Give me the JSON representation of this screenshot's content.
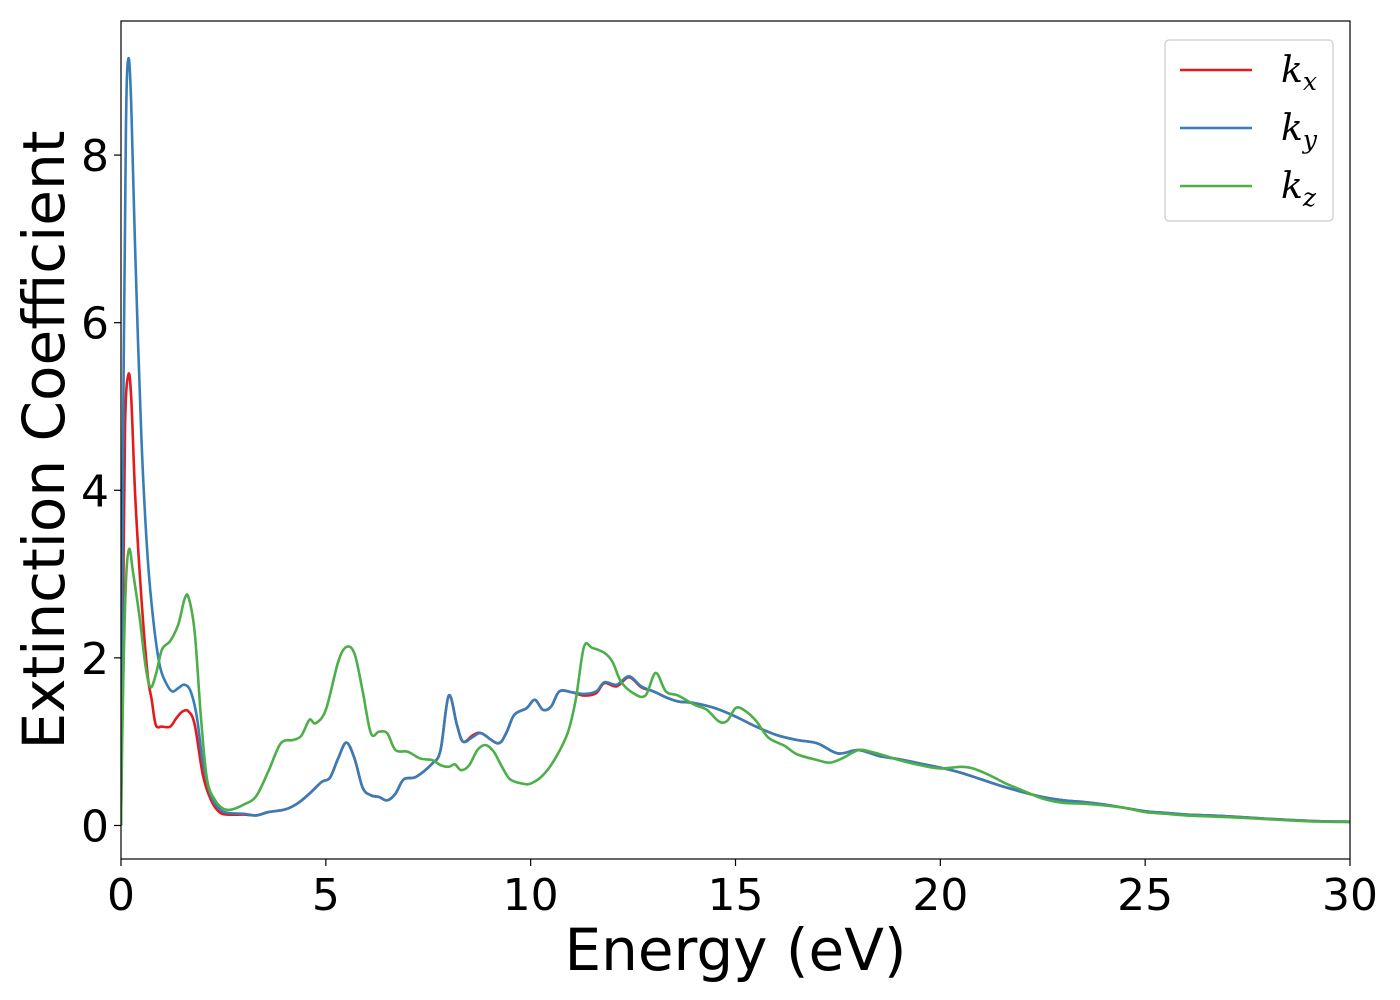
{
  "chart_data": {
    "type": "line",
    "xlabel": "Energy (eV)",
    "ylabel": "Extinction Coefficient",
    "xlim": [
      0,
      30
    ],
    "ylim": [
      -0.4,
      9.6
    ],
    "xticks": [
      0,
      5,
      10,
      15,
      20,
      25,
      30
    ],
    "yticks": [
      0,
      2,
      4,
      6,
      8
    ],
    "grid": false,
    "legend_position": "top-right",
    "series": [
      {
        "name": "k",
        "subscript": "x",
        "color": "#e41a1c",
        "points": [
          [
            0.0,
            0.0
          ],
          [
            0.05,
            2.5
          ],
          [
            0.1,
            4.8
          ],
          [
            0.18,
            5.38
          ],
          [
            0.25,
            5.1
          ],
          [
            0.35,
            3.9
          ],
          [
            0.5,
            2.7
          ],
          [
            0.65,
            1.8
          ],
          [
            0.75,
            1.5
          ],
          [
            0.85,
            1.2
          ],
          [
            1.0,
            1.18
          ],
          [
            1.2,
            1.18
          ],
          [
            1.35,
            1.28
          ],
          [
            1.5,
            1.36
          ],
          [
            1.65,
            1.36
          ],
          [
            1.8,
            1.2
          ],
          [
            2.0,
            0.6
          ],
          [
            2.2,
            0.3
          ],
          [
            2.4,
            0.16
          ],
          [
            2.6,
            0.13
          ],
          [
            3.0,
            0.13
          ],
          [
            3.3,
            0.12
          ],
          [
            3.6,
            0.16
          ],
          [
            4.0,
            0.19
          ],
          [
            4.3,
            0.26
          ],
          [
            4.6,
            0.38
          ],
          [
            4.9,
            0.52
          ],
          [
            5.1,
            0.57
          ],
          [
            5.3,
            0.8
          ],
          [
            5.5,
            0.99
          ],
          [
            5.7,
            0.8
          ],
          [
            5.9,
            0.45
          ],
          [
            6.1,
            0.36
          ],
          [
            6.3,
            0.34
          ],
          [
            6.5,
            0.3
          ],
          [
            6.7,
            0.38
          ],
          [
            6.9,
            0.55
          ],
          [
            7.2,
            0.58
          ],
          [
            7.6,
            0.74
          ],
          [
            7.8,
            0.9
          ],
          [
            8.0,
            1.55
          ],
          [
            8.2,
            1.2
          ],
          [
            8.35,
            1.0
          ],
          [
            8.6,
            1.08
          ],
          [
            8.8,
            1.1
          ],
          [
            9.2,
            0.98
          ],
          [
            9.4,
            1.1
          ],
          [
            9.6,
            1.32
          ],
          [
            9.9,
            1.4
          ],
          [
            10.1,
            1.5
          ],
          [
            10.3,
            1.38
          ],
          [
            10.5,
            1.42
          ],
          [
            10.7,
            1.6
          ],
          [
            11.0,
            1.59
          ],
          [
            11.3,
            1.55
          ],
          [
            11.6,
            1.58
          ],
          [
            11.8,
            1.7
          ],
          [
            12.1,
            1.66
          ],
          [
            12.4,
            1.77
          ],
          [
            12.7,
            1.65
          ],
          [
            13.0,
            1.6
          ],
          [
            13.3,
            1.53
          ],
          [
            13.6,
            1.48
          ],
          [
            14.0,
            1.46
          ],
          [
            14.5,
            1.4
          ],
          [
            15.0,
            1.3
          ],
          [
            15.5,
            1.18
          ],
          [
            16.0,
            1.08
          ],
          [
            16.5,
            1.02
          ],
          [
            17.0,
            0.98
          ],
          [
            17.5,
            0.86
          ],
          [
            18.0,
            0.9
          ],
          [
            18.5,
            0.83
          ],
          [
            19.0,
            0.79
          ],
          [
            19.5,
            0.74
          ],
          [
            20.0,
            0.69
          ],
          [
            20.5,
            0.63
          ],
          [
            21.0,
            0.55
          ],
          [
            21.5,
            0.47
          ],
          [
            22.0,
            0.4
          ],
          [
            22.5,
            0.34
          ],
          [
            23.0,
            0.3
          ],
          [
            23.5,
            0.28
          ],
          [
            24.0,
            0.25
          ],
          [
            24.5,
            0.21
          ],
          [
            25.0,
            0.17
          ],
          [
            25.5,
            0.15
          ],
          [
            26.0,
            0.13
          ],
          [
            27.0,
            0.11
          ],
          [
            28.0,
            0.08
          ],
          [
            29.0,
            0.055
          ],
          [
            30.0,
            0.045
          ]
        ]
      },
      {
        "name": "k",
        "subscript": "y",
        "color": "#377eb8",
        "points": [
          [
            0.0,
            0.0
          ],
          [
            0.05,
            4.5
          ],
          [
            0.12,
            8.3
          ],
          [
            0.18,
            9.15
          ],
          [
            0.25,
            8.6
          ],
          [
            0.35,
            6.8
          ],
          [
            0.5,
            4.6
          ],
          [
            0.65,
            3.2
          ],
          [
            0.8,
            2.4
          ],
          [
            0.95,
            1.9
          ],
          [
            1.1,
            1.7
          ],
          [
            1.25,
            1.6
          ],
          [
            1.4,
            1.64
          ],
          [
            1.55,
            1.68
          ],
          [
            1.7,
            1.6
          ],
          [
            1.85,
            1.3
          ],
          [
            2.0,
            0.75
          ],
          [
            2.2,
            0.35
          ],
          [
            2.4,
            0.2
          ],
          [
            2.6,
            0.15
          ],
          [
            3.0,
            0.14
          ],
          [
            3.3,
            0.12
          ],
          [
            3.6,
            0.16
          ],
          [
            4.0,
            0.19
          ],
          [
            4.3,
            0.26
          ],
          [
            4.6,
            0.38
          ],
          [
            4.9,
            0.52
          ],
          [
            5.1,
            0.57
          ],
          [
            5.3,
            0.8
          ],
          [
            5.5,
            0.99
          ],
          [
            5.7,
            0.8
          ],
          [
            5.9,
            0.45
          ],
          [
            6.1,
            0.36
          ],
          [
            6.3,
            0.34
          ],
          [
            6.5,
            0.3
          ],
          [
            6.7,
            0.38
          ],
          [
            6.9,
            0.55
          ],
          [
            7.2,
            0.58
          ],
          [
            7.6,
            0.74
          ],
          [
            7.8,
            0.9
          ],
          [
            8.0,
            1.55
          ],
          [
            8.2,
            1.2
          ],
          [
            8.35,
            1.0
          ],
          [
            8.6,
            1.06
          ],
          [
            8.8,
            1.1
          ],
          [
            9.2,
            0.98
          ],
          [
            9.4,
            1.1
          ],
          [
            9.6,
            1.32
          ],
          [
            9.9,
            1.4
          ],
          [
            10.1,
            1.5
          ],
          [
            10.3,
            1.38
          ],
          [
            10.5,
            1.42
          ],
          [
            10.7,
            1.6
          ],
          [
            11.0,
            1.59
          ],
          [
            11.3,
            1.57
          ],
          [
            11.6,
            1.6
          ],
          [
            11.8,
            1.71
          ],
          [
            12.1,
            1.68
          ],
          [
            12.4,
            1.78
          ],
          [
            12.7,
            1.66
          ],
          [
            13.0,
            1.6
          ],
          [
            13.3,
            1.53
          ],
          [
            13.6,
            1.48
          ],
          [
            14.0,
            1.46
          ],
          [
            14.5,
            1.4
          ],
          [
            15.0,
            1.3
          ],
          [
            15.5,
            1.18
          ],
          [
            16.0,
            1.08
          ],
          [
            16.5,
            1.02
          ],
          [
            17.0,
            0.98
          ],
          [
            17.5,
            0.86
          ],
          [
            18.0,
            0.9
          ],
          [
            18.5,
            0.83
          ],
          [
            19.0,
            0.79
          ],
          [
            19.5,
            0.74
          ],
          [
            20.0,
            0.69
          ],
          [
            20.5,
            0.63
          ],
          [
            21.0,
            0.55
          ],
          [
            21.5,
            0.47
          ],
          [
            22.0,
            0.4
          ],
          [
            22.5,
            0.34
          ],
          [
            23.0,
            0.3
          ],
          [
            23.5,
            0.28
          ],
          [
            24.0,
            0.25
          ],
          [
            24.5,
            0.21
          ],
          [
            25.0,
            0.17
          ],
          [
            25.5,
            0.15
          ],
          [
            26.0,
            0.13
          ],
          [
            27.0,
            0.11
          ],
          [
            28.0,
            0.08
          ],
          [
            29.0,
            0.055
          ],
          [
            30.0,
            0.045
          ]
        ]
      },
      {
        "name": "k",
        "subscript": "z",
        "color": "#4daf4a",
        "points": [
          [
            0.0,
            0.0
          ],
          [
            0.05,
            1.6
          ],
          [
            0.12,
            2.9
          ],
          [
            0.2,
            3.3
          ],
          [
            0.3,
            3.0
          ],
          [
            0.45,
            2.5
          ],
          [
            0.6,
            1.9
          ],
          [
            0.72,
            1.65
          ],
          [
            0.85,
            1.8
          ],
          [
            1.0,
            2.1
          ],
          [
            1.2,
            2.2
          ],
          [
            1.4,
            2.4
          ],
          [
            1.55,
            2.7
          ],
          [
            1.65,
            2.72
          ],
          [
            1.8,
            2.3
          ],
          [
            1.95,
            1.3
          ],
          [
            2.1,
            0.55
          ],
          [
            2.3,
            0.3
          ],
          [
            2.5,
            0.2
          ],
          [
            2.7,
            0.19
          ],
          [
            3.0,
            0.25
          ],
          [
            3.3,
            0.35
          ],
          [
            3.6,
            0.65
          ],
          [
            3.9,
            0.98
          ],
          [
            4.2,
            1.02
          ],
          [
            4.4,
            1.07
          ],
          [
            4.6,
            1.26
          ],
          [
            4.75,
            1.22
          ],
          [
            5.0,
            1.38
          ],
          [
            5.3,
            1.95
          ],
          [
            5.5,
            2.13
          ],
          [
            5.7,
            2.05
          ],
          [
            5.9,
            1.6
          ],
          [
            6.1,
            1.1
          ],
          [
            6.3,
            1.12
          ],
          [
            6.5,
            1.1
          ],
          [
            6.7,
            0.9
          ],
          [
            7.0,
            0.88
          ],
          [
            7.3,
            0.8
          ],
          [
            7.6,
            0.78
          ],
          [
            7.8,
            0.72
          ],
          [
            8.0,
            0.7
          ],
          [
            8.15,
            0.73
          ],
          [
            8.3,
            0.66
          ],
          [
            8.5,
            0.72
          ],
          [
            8.7,
            0.9
          ],
          [
            8.9,
            0.96
          ],
          [
            9.1,
            0.88
          ],
          [
            9.3,
            0.7
          ],
          [
            9.5,
            0.55
          ],
          [
            9.8,
            0.5
          ],
          [
            10.0,
            0.5
          ],
          [
            10.3,
            0.6
          ],
          [
            10.6,
            0.8
          ],
          [
            10.9,
            1.1
          ],
          [
            11.1,
            1.5
          ],
          [
            11.3,
            2.13
          ],
          [
            11.5,
            2.12
          ],
          [
            11.8,
            2.06
          ],
          [
            12.0,
            1.95
          ],
          [
            12.2,
            1.72
          ],
          [
            12.5,
            1.58
          ],
          [
            12.8,
            1.55
          ],
          [
            13.05,
            1.82
          ],
          [
            13.3,
            1.6
          ],
          [
            13.6,
            1.55
          ],
          [
            14.0,
            1.44
          ],
          [
            14.3,
            1.38
          ],
          [
            14.6,
            1.24
          ],
          [
            14.8,
            1.25
          ],
          [
            15.0,
            1.4
          ],
          [
            15.2,
            1.38
          ],
          [
            15.5,
            1.25
          ],
          [
            15.8,
            1.05
          ],
          [
            16.2,
            0.95
          ],
          [
            16.5,
            0.85
          ],
          [
            17.0,
            0.78
          ],
          [
            17.3,
            0.75
          ],
          [
            17.6,
            0.8
          ],
          [
            18.0,
            0.9
          ],
          [
            18.3,
            0.88
          ],
          [
            18.6,
            0.84
          ],
          [
            19.0,
            0.78
          ],
          [
            19.5,
            0.72
          ],
          [
            20.0,
            0.68
          ],
          [
            20.5,
            0.7
          ],
          [
            20.8,
            0.68
          ],
          [
            21.2,
            0.6
          ],
          [
            21.6,
            0.5
          ],
          [
            22.0,
            0.42
          ],
          [
            22.5,
            0.32
          ],
          [
            23.0,
            0.27
          ],
          [
            23.5,
            0.26
          ],
          [
            24.0,
            0.24
          ],
          [
            24.5,
            0.21
          ],
          [
            25.0,
            0.16
          ],
          [
            25.5,
            0.14
          ],
          [
            26.0,
            0.12
          ],
          [
            27.0,
            0.1
          ],
          [
            28.0,
            0.075
          ],
          [
            29.0,
            0.05
          ],
          [
            30.0,
            0.04
          ]
        ]
      }
    ]
  }
}
